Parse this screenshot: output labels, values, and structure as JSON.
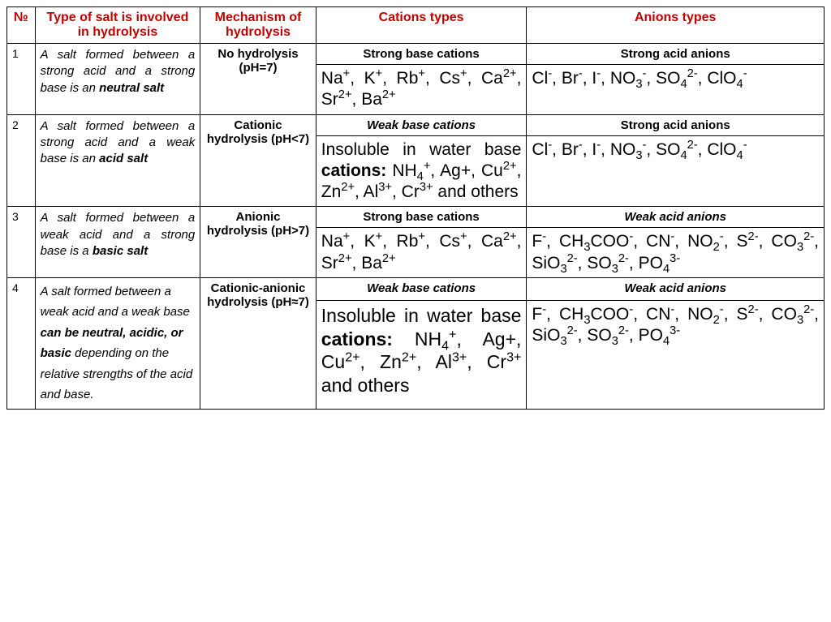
{
  "headers": {
    "num": "№",
    "type": "Type of salt is involved in hydrolysis",
    "mech": "Mechanism of hydrolysis",
    "cat": "Cations types",
    "an": "Anions types"
  },
  "rows": [
    {
      "num": "1",
      "type_html": "A salt formed between a strong acid and a strong base is an <b>neutral salt</b>",
      "mech": "No hydrolysis (pH=7)",
      "cat_head": "Strong base cations",
      "cat_head_italic": false,
      "cat_html": "Na<sup>+</sup>, K<sup>+</sup>, Rb<sup>+</sup>, Cs<sup>+</sup>, Ca<sup>2+</sup>, Sr<sup>2+</sup>, Ba<sup>2+</sup>",
      "an_head": "Strong acid anions",
      "an_head_italic": false,
      "an_html": "Cl<sup>-</sup>, Br<sup>-</sup>, I<sup>-</sup>, NO<sub>3</sub><sup>-</sup>, SO<sub>4</sub><sup>2-</sup>, ClO<sub>4</sub><sup>-</sup>"
    },
    {
      "num": "2",
      "type_html": "A salt formed between a strong acid and a weak base is an <b>acid salt</b>",
      "mech": "Cationic hydrolysis (pH<7)",
      "cat_head": "Weak base cations",
      "cat_head_italic": true,
      "cat_html": "Insoluble in water base <b>cations:</b> NH<sub>4</sub><sup>+</sup>, Ag+, Cu<sup>2+</sup>, Zn<sup>2+</sup>, Al<sup>3+</sup>, Cr<sup>3+</sup> and others",
      "an_head": "Strong acid anions",
      "an_head_italic": false,
      "an_html": "Cl<sup>-</sup>, Br<sup>-</sup>, I<sup>-</sup>, NO<sub>3</sub><sup>-</sup>, SO<sub>4</sub><sup>2-</sup>, ClO<sub>4</sub><sup>-</sup>"
    },
    {
      "num": "3",
      "type_html": "A salt formed between a weak acid and a strong base is a <b>basic salt</b>",
      "mech": "Anionic hydrolysis (pH>7)",
      "cat_head": "Strong base cations",
      "cat_head_italic": false,
      "cat_html": "Na<sup>+</sup>, K<sup>+</sup>, Rb<sup>+</sup>, Cs<sup>+</sup>, Ca<sup>2+</sup>, Sr<sup>2+</sup>, Ba<sup>2+</sup>",
      "an_head": "Weak acid anions",
      "an_head_italic": true,
      "an_html": "F<sup>-</sup>, CH<sub>3</sub>COO<sup>-</sup>, CN<sup>-</sup>, NO<sub>2</sub><sup>-</sup>, S<sup>2-</sup>, CO<sub>3</sub><sup>2-</sup>, SiO<sub>3</sub><sup>2-</sup>, SO<sub>3</sub><sup>2-</sup>, PO<sub>4</sub><sup>3-</sup>"
    },
    {
      "num": "4",
      "type_html": "A salt formed between a weak acid and a weak base <b>can be neutral, acidic, or basic</b> depending on the relative strengths of the acid and base.",
      "type_justify": false,
      "mech": "Cationic-anionic hydrolysis (pH≈7)",
      "cat_head": "Weak base cations",
      "cat_head_italic": true,
      "cat_html": "Insoluble in water base <b>cations:</b> NH<sub>4</sub><sup>+</sup>, Ag+, Cu<sup>2+</sup>, Zn<sup>2+</sup>, Al<sup>3+</sup>, Cr<sup>3+</sup> and others",
      "cat_font_large": true,
      "an_head": "Weak acid anions",
      "an_head_italic": true,
      "an_html": "F<sup>-</sup>, CH<sub>3</sub>COO<sup>-</sup>, CN<sup>-</sup>, NO<sub>2</sub><sup>-</sup>, S<sup>2-</sup>, CO<sub>3</sub><sup>2-</sup>, SiO<sub>3</sub><sup>2-</sup>, SO<sub>3</sub><sup>2-</sup>, PO<sub>4</sub><sup>3-</sup>"
    }
  ],
  "colors": {
    "header_text": "#c00000",
    "border": "#000000",
    "background": "#ffffff"
  }
}
